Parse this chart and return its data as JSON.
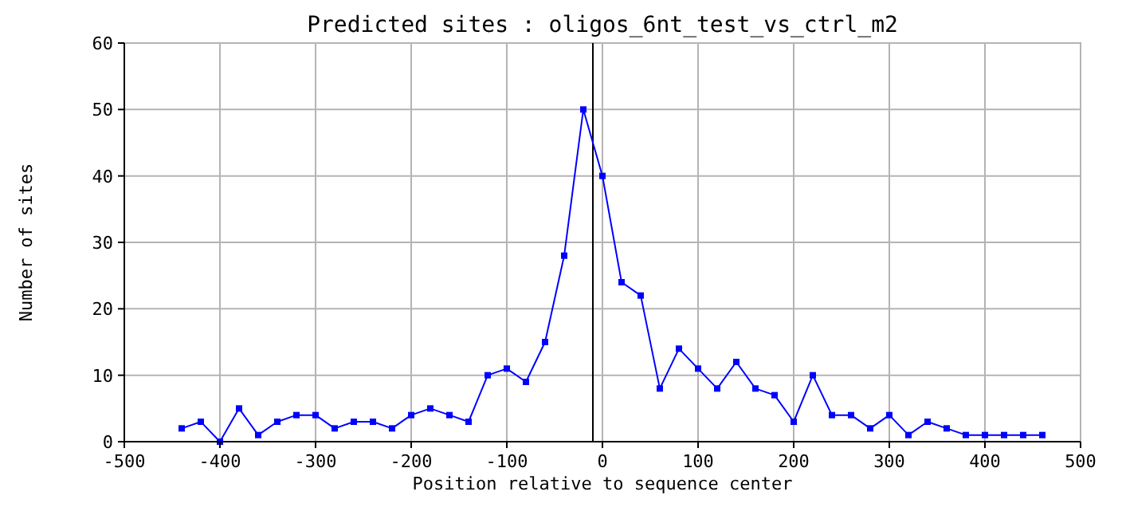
{
  "chart_data": {
    "type": "line",
    "title": "Predicted sites : oligos_6nt_test_vs_ctrl_m2",
    "xlabel": "Position relative to sequence center",
    "ylabel": "Number of sites",
    "x": [
      -440,
      -420,
      -400,
      -380,
      -360,
      -340,
      -320,
      -300,
      -280,
      -260,
      -240,
      -220,
      -200,
      -180,
      -160,
      -140,
      -120,
      -100,
      -80,
      -60,
      -40,
      -20,
      0,
      20,
      40,
      60,
      80,
      100,
      120,
      140,
      160,
      180,
      200,
      220,
      240,
      260,
      280,
      300,
      320,
      340,
      360,
      380,
      400,
      420,
      440,
      460
    ],
    "series": [
      {
        "color": "#0000ff",
        "values": [
          2,
          3,
          0,
          5,
          1,
          3,
          4,
          4,
          2,
          3,
          3,
          2,
          4,
          5,
          4,
          3,
          10,
          11,
          9,
          15,
          28,
          50,
          40,
          24,
          22,
          8,
          14,
          11,
          8,
          12,
          8,
          7,
          3,
          10,
          4,
          4,
          2,
          4,
          1,
          3,
          2,
          1,
          1,
          1,
          1,
          1
        ]
      }
    ],
    "xlim": [
      -500,
      500
    ],
    "xticks": [
      -500,
      -400,
      -300,
      -200,
      -100,
      0,
      100,
      200,
      300,
      400,
      500
    ],
    "ylim": [
      0,
      60
    ],
    "yticks": [
      0,
      10,
      20,
      30,
      40,
      50,
      60
    ],
    "ref_lines": [
      {
        "axis": "x",
        "value": -10,
        "color": "#000000"
      }
    ],
    "grid": true,
    "marker": "square",
    "line_style": "solid"
  }
}
